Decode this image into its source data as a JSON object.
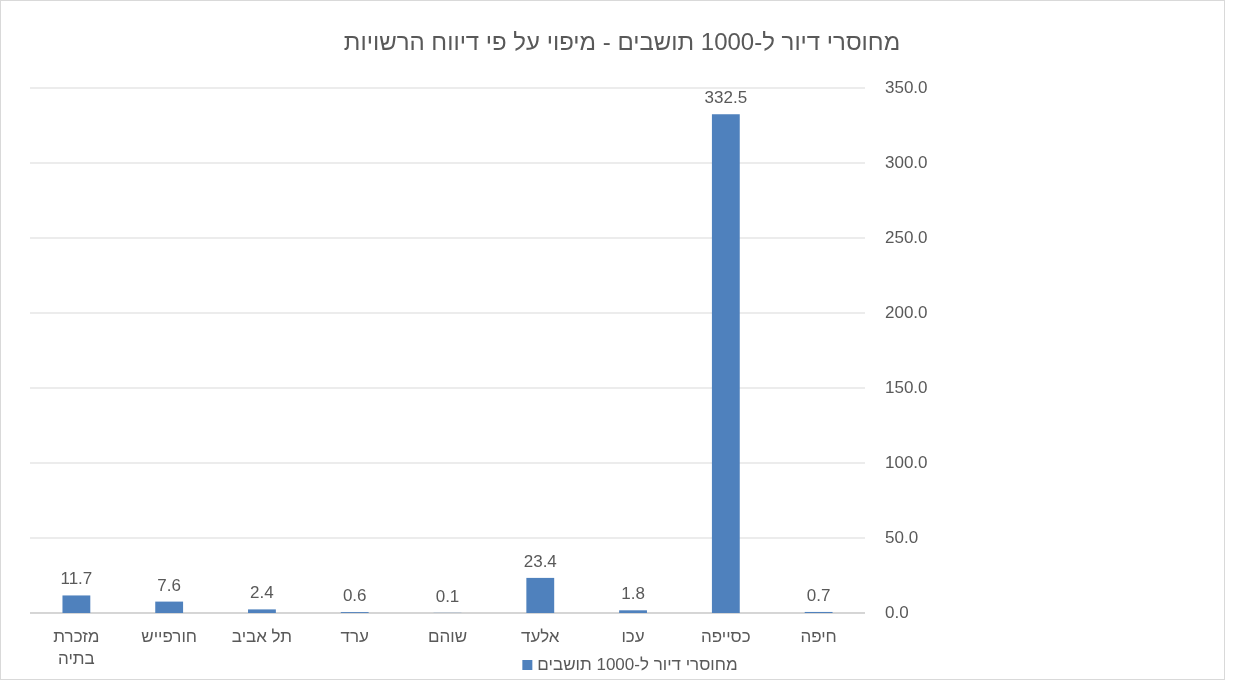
{
  "chart_data": {
    "type": "bar",
    "title": "מחוסרי דיור ל-1000 תושבים - מיפוי על פי דיווח הרשויות",
    "categories": [
      "מזכרת בתיה",
      "חורפייש",
      "תל אביב",
      "ערד",
      "שוהם",
      "אלעד",
      "עכו",
      "כסייפה",
      "חיפה"
    ],
    "series": [
      {
        "name": "מחוסרי דיור ל-1000 תושבים",
        "color": "#4f81bd",
        "values": [
          11.7,
          7.6,
          2.4,
          0.6,
          0.1,
          23.4,
          1.8,
          332.5,
          0.7
        ]
      }
    ],
    "ylim": [
      0,
      350
    ],
    "yticks": [
      {
        "value": 0,
        "label": "0.0"
      },
      {
        "value": 50,
        "label": "50.0"
      },
      {
        "value": 100,
        "label": "100.0"
      },
      {
        "value": 150,
        "label": "150.0"
      },
      {
        "value": 200,
        "label": "200.0"
      },
      {
        "value": 250,
        "label": "250.0"
      },
      {
        "value": 300,
        "label": "300.0"
      },
      {
        "value": 350,
        "label": "350.0"
      }
    ],
    "grid": "y",
    "legend": "bottom",
    "data_labels": true
  }
}
